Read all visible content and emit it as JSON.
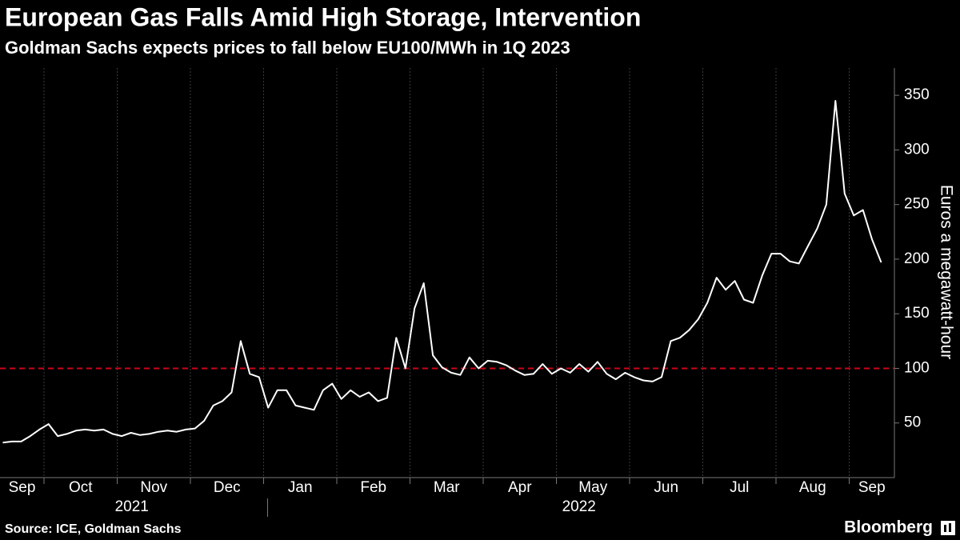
{
  "chart_data": {
    "type": "line",
    "title": "European Gas Falls Amid High Storage, Intervention",
    "subtitle": "Goldman Sachs expects prices to fall below EU100/MWh in 1Q 2023",
    "y_label": "Euros a megawatt-hour",
    "source": "Source: ICE, Goldman Sachs",
    "brand": "Bloomberg",
    "categories": [
      "Sep",
      "Oct",
      "Nov",
      "Dec",
      "Jan",
      "Feb",
      "Mar",
      "Apr",
      "May",
      "Jun",
      "Jul",
      "Aug",
      "Sep"
    ],
    "years": [
      "2021",
      "2022"
    ],
    "x": [
      "2021-09",
      "2021-09",
      "2021-09",
      "2021-09",
      "2021-09",
      "2021-10",
      "2021-10",
      "2021-10",
      "2021-10",
      "2021-10",
      "2021-10",
      "2021-10",
      "2021-10",
      "2021-11",
      "2021-11",
      "2021-11",
      "2021-11",
      "2021-11",
      "2021-11",
      "2021-11",
      "2021-11",
      "2021-12",
      "2021-12",
      "2021-12",
      "2021-12",
      "2021-12",
      "2021-12",
      "2021-12",
      "2021-12",
      "2022-01",
      "2022-01",
      "2022-01",
      "2022-01",
      "2022-01",
      "2022-01",
      "2022-01",
      "2022-01",
      "2022-02",
      "2022-02",
      "2022-02",
      "2022-02",
      "2022-02",
      "2022-02",
      "2022-02",
      "2022-02",
      "2022-03",
      "2022-03",
      "2022-03",
      "2022-03",
      "2022-03",
      "2022-03",
      "2022-03",
      "2022-03",
      "2022-04",
      "2022-04",
      "2022-04",
      "2022-04",
      "2022-04",
      "2022-04",
      "2022-04",
      "2022-04",
      "2022-05",
      "2022-05",
      "2022-05",
      "2022-05",
      "2022-05",
      "2022-05",
      "2022-05",
      "2022-05",
      "2022-06",
      "2022-06",
      "2022-06",
      "2022-06",
      "2022-06",
      "2022-06",
      "2022-06",
      "2022-06",
      "2022-07",
      "2022-07",
      "2022-07",
      "2022-07",
      "2022-07",
      "2022-07",
      "2022-07",
      "2022-07",
      "2022-08",
      "2022-08",
      "2022-08",
      "2022-08",
      "2022-08",
      "2022-08",
      "2022-08",
      "2022-08",
      "2022-09",
      "2022-09",
      "2022-09",
      "2022-09"
    ],
    "values": [
      32,
      33,
      33,
      38,
      44,
      49,
      38,
      40,
      43,
      44,
      43,
      44,
      40,
      38,
      41,
      39,
      40,
      42,
      43,
      42,
      44,
      45,
      52,
      66,
      70,
      78,
      125,
      95,
      92,
      64,
      80,
      80,
      66,
      64,
      62,
      80,
      86,
      72,
      80,
      74,
      78,
      70,
      73,
      128,
      100,
      155,
      178,
      112,
      101,
      96,
      94,
      110,
      100,
      107,
      106,
      103,
      98,
      94,
      95,
      104,
      95,
      100,
      96,
      104,
      97,
      106,
      95,
      90,
      96,
      92,
      89,
      88,
      92,
      125,
      128,
      135,
      145,
      160,
      183,
      172,
      180,
      163,
      160,
      185,
      205,
      205,
      198,
      196,
      212,
      228,
      250,
      345,
      260,
      240,
      245,
      218,
      197
    ],
    "color": "#ffffff",
    "reference_line": 100,
    "reference_color": "#d0021b",
    "ylim": [
      0,
      375
    ],
    "yticks": [
      50,
      100,
      150,
      200,
      250,
      300,
      350
    ]
  }
}
